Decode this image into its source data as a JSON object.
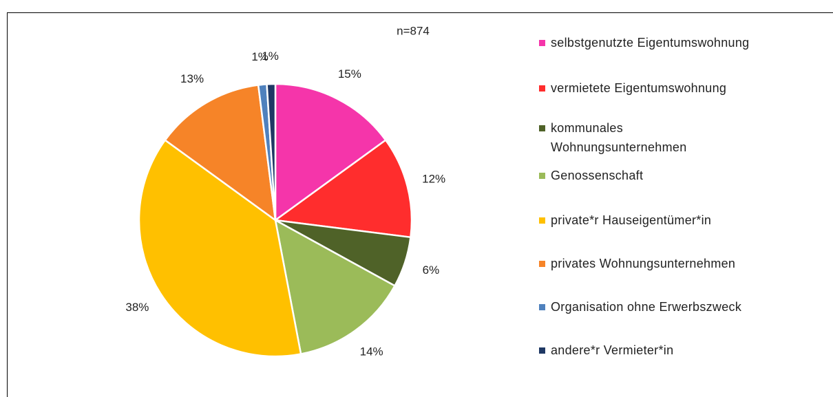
{
  "chart_data": {
    "type": "pie",
    "annotation": "n=874",
    "categories": [
      "selbstgenutzte Eigentumswohnung",
      "vermietete Eigentumswohnung",
      "kommunales Wohnungsunternehmen",
      "Genossenschaft",
      "private*r Hauseigentümer*in",
      "privates Wohnungsunternehmen",
      "Organisation ohne Erwerbszweck",
      "andere*r Vermieter*in"
    ],
    "values": [
      15,
      12,
      6,
      14,
      38,
      13,
      1,
      1
    ],
    "value_labels": [
      "15%",
      "12%",
      "6%",
      "14%",
      "38%",
      "13%",
      "1%",
      "1%"
    ],
    "colors": [
      "#f535aa",
      "#ff2d2d",
      "#4f6228",
      "#9bbb59",
      "#ffc000",
      "#f68428",
      "#4f81bd",
      "#1f3864"
    ],
    "legend": "right"
  }
}
